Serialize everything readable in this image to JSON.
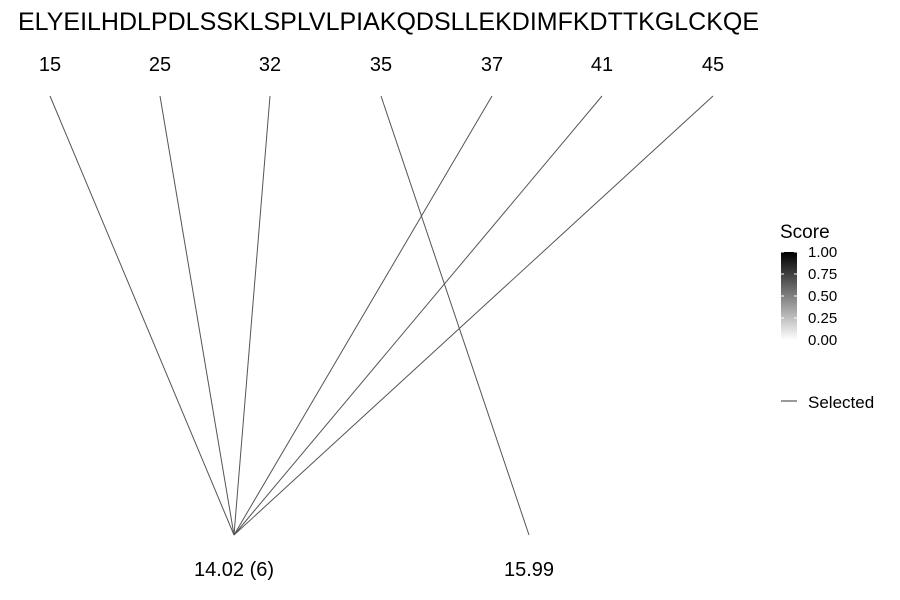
{
  "chart_data": {
    "type": "line",
    "title": "",
    "sequence": "ELYEILHDLPDLSSKLSPLVLPIAKQDSLLEKDIMFKDTTKGLCKQE",
    "top_axis": {
      "labels": [
        "15",
        "25",
        "32",
        "35",
        "37",
        "41",
        "45"
      ],
      "values": [
        15,
        25,
        32,
        35,
        37,
        41,
        45
      ]
    },
    "bottom_axis": {
      "labels": [
        "14.02 (6)",
        "15.99"
      ],
      "values": [
        14.02,
        15.99
      ]
    },
    "connections": [
      {
        "from": 15,
        "to": 14.02
      },
      {
        "from": 25,
        "to": 14.02
      },
      {
        "from": 32,
        "to": 14.02
      },
      {
        "from": 35,
        "to": 15.99
      },
      {
        "from": 37,
        "to": 14.02
      },
      {
        "from": 41,
        "to": 14.02
      },
      {
        "from": 45,
        "to": 14.02
      }
    ],
    "line_color": "#555555",
    "legend": {
      "title": "Score",
      "colorbar_ticks": [
        "1.00",
        "0.75",
        "0.50",
        "0.25",
        "0.00"
      ],
      "colorbar_range": [
        0,
        1
      ],
      "colorbar_colors": [
        "#000000",
        "#ffffff"
      ],
      "key_label": "Selected",
      "placement": "right"
    }
  }
}
